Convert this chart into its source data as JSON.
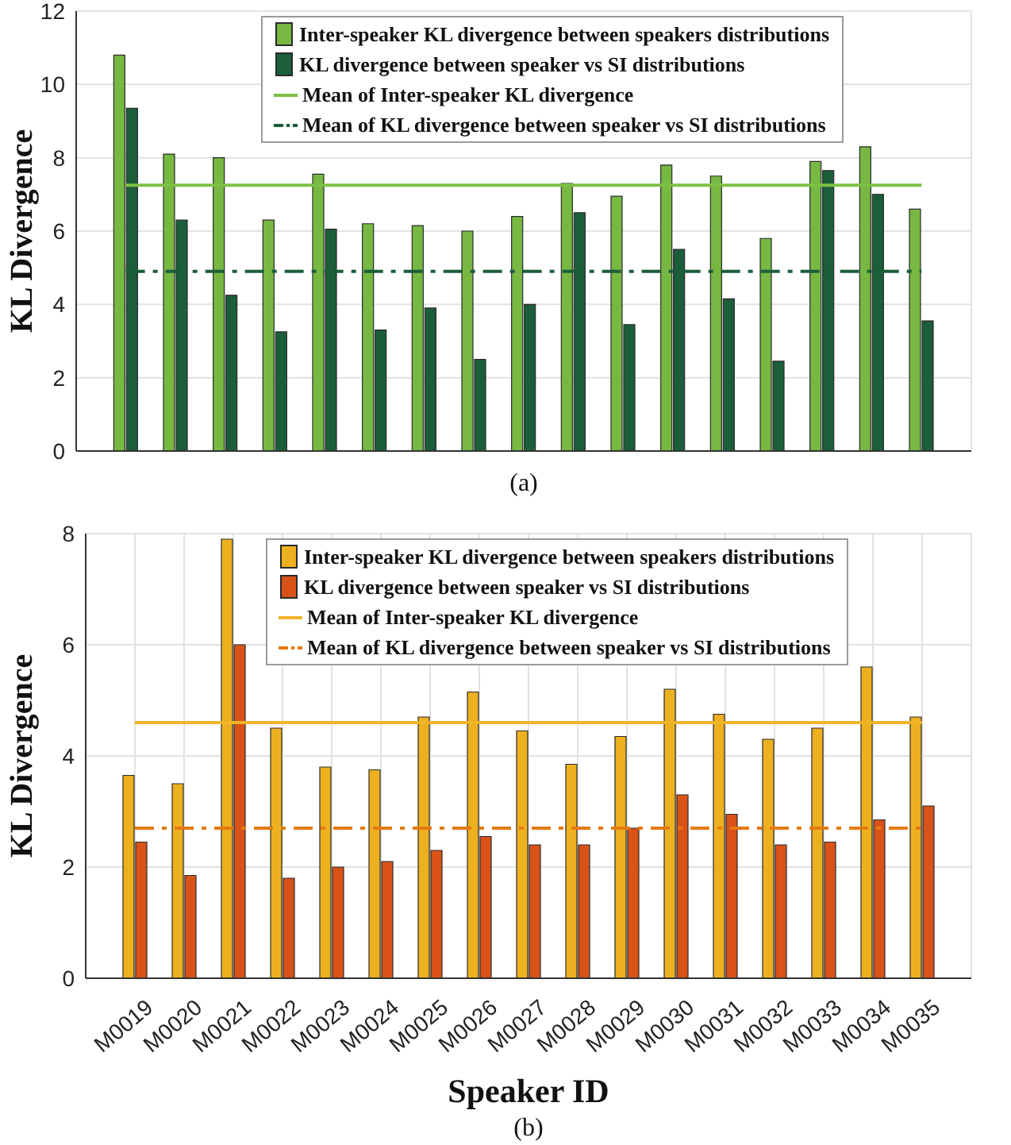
{
  "chart_data": [
    {
      "type": "bar",
      "ylabel": "KL Divergence",
      "categories": [
        null,
        null,
        null,
        null,
        null,
        null,
        null,
        null,
        null,
        null,
        null,
        null,
        null,
        null,
        null,
        null,
        null
      ],
      "series": [
        {
          "name": "Inter-speaker KL divergence between speakers distributions",
          "color": "#77b843",
          "values": [
            10.8,
            8.1,
            8.0,
            6.3,
            7.55,
            6.2,
            6.15,
            6.0,
            6.4,
            7.3,
            6.95,
            7.8,
            7.5,
            5.8,
            7.9,
            8.3,
            6.6
          ]
        },
        {
          "name": "KL divergence between speaker vs SI distributions",
          "color": "#1b5e3a",
          "values": [
            9.35,
            6.3,
            4.25,
            3.25,
            6.05,
            3.3,
            3.9,
            2.5,
            4.0,
            6.5,
            3.45,
            5.5,
            4.15,
            2.45,
            7.65,
            7.0,
            3.55
          ]
        }
      ],
      "ref_lines": [
        {
          "axis": "y",
          "value": 7.25,
          "label": "Mean of Inter-speaker KL divergence",
          "color": "#7cc143",
          "line_style": "solid"
        },
        {
          "axis": "y",
          "value": 4.9,
          "label": "Mean of KL divergence between speaker vs SI distributions",
          "color": "#1b5e3a",
          "line_style": "dashed"
        }
      ],
      "ylim": [
        0,
        12
      ],
      "yticks": [
        0,
        2,
        4,
        6,
        8,
        10,
        12
      ],
      "grid": true,
      "legend": "top",
      "tick_labels": "y",
      "annotations": [
        "(a)"
      ]
    },
    {
      "type": "bar",
      "xlabel": "Speaker ID",
      "ylabel": "KL Divergence",
      "categories": [
        "M0019",
        "M0020",
        "M0021",
        "M0022",
        "M0023",
        "M0024",
        "M0025",
        "M0026",
        "M0027",
        "M0028",
        "M0029",
        "M0030",
        "M0031",
        "M0032",
        "M0033",
        "M0034",
        "M0035"
      ],
      "series": [
        {
          "name": "Inter-speaker KL divergence between speakers distributions",
          "color": "#edb120",
          "values": [
            3.65,
            3.5,
            7.9,
            4.5,
            3.8,
            3.75,
            4.7,
            5.15,
            4.45,
            3.85,
            4.35,
            5.2,
            4.75,
            4.3,
            4.5,
            5.6,
            4.7
          ]
        },
        {
          "name": "KL divergence between speaker vs SI distributions",
          "color": "#d95319",
          "values": [
            2.45,
            1.85,
            6.0,
            1.8,
            2.0,
            2.1,
            2.3,
            2.55,
            2.4,
            2.4,
            2.7,
            3.3,
            2.95,
            2.4,
            2.45,
            2.85,
            3.1
          ]
        }
      ],
      "ref_lines": [
        {
          "axis": "y",
          "value": 4.6,
          "label": "Mean of Inter-speaker KL divergence",
          "color": "#f0b429",
          "line_style": "solid"
        },
        {
          "axis": "y",
          "value": 2.7,
          "label": "Mean of KL divergence between speaker vs SI distributions",
          "color": "#e6790f",
          "line_style": "dashed"
        }
      ],
      "ylim": [
        0,
        8
      ],
      "yticks": [
        0,
        2,
        4,
        6,
        8
      ],
      "grid": true,
      "legend": "top",
      "annotations": [
        "(b)"
      ]
    }
  ]
}
